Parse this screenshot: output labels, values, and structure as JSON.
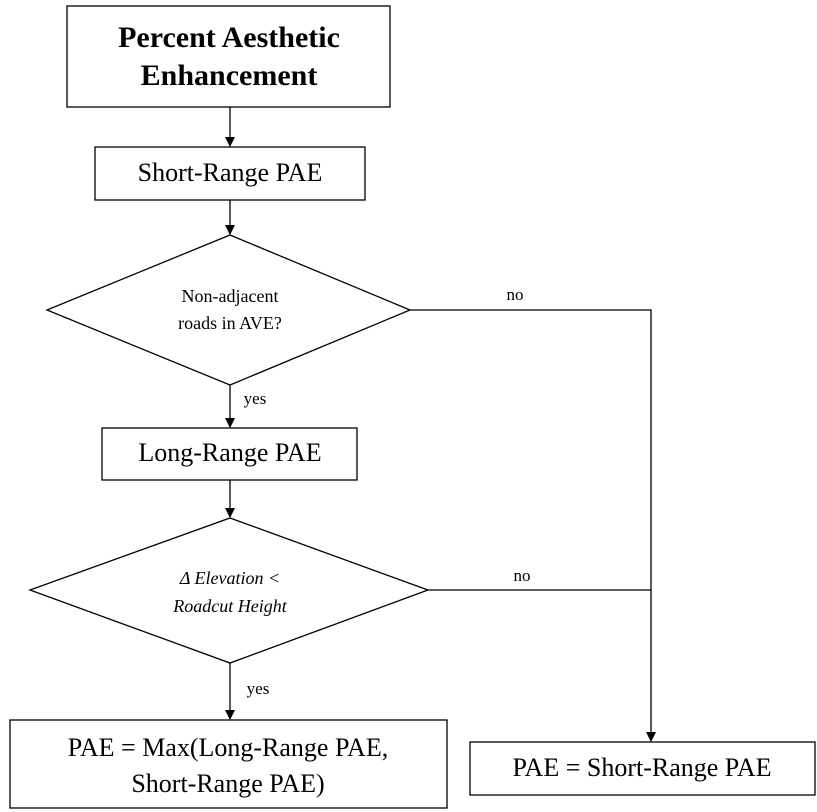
{
  "nodes": [
    {
      "label": [
        "Percent Aesthetic",
        "Enhancement"
      ]
    },
    {
      "label": [
        "Short-Range PAE"
      ]
    },
    {
      "label": [
        "Non-adjacent",
        "roads in AVE?"
      ]
    },
    {
      "label": [
        "Long-Range PAE"
      ]
    },
    {
      "label": [
        "Δ Elevation <",
        "Roadcut Height"
      ]
    },
    {
      "label": [
        "PAE = Max(Long-Range PAE,",
        "Short-Range PAE)"
      ]
    },
    {
      "label": [
        "PAE = Short-Range PAE"
      ]
    }
  ],
  "edges": [
    {
      "label": "no"
    },
    {
      "label": "yes"
    },
    {
      "label": "no"
    },
    {
      "label": "yes"
    }
  ]
}
